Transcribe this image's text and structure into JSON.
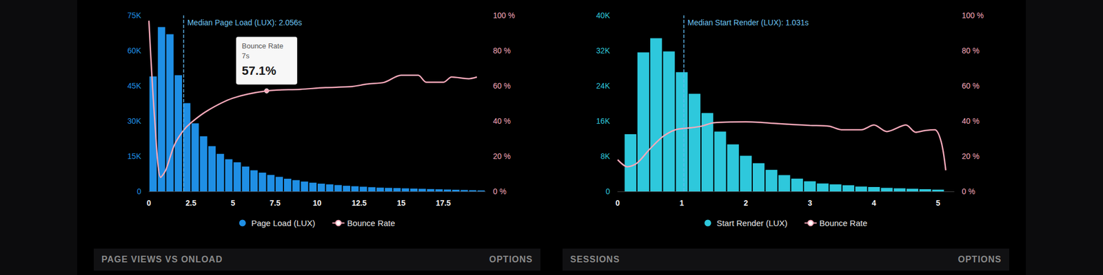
{
  "chart_data": [
    {
      "type": "bar",
      "bins": [
        0,
        0.5,
        1,
        1.5,
        2,
        2.5,
        3,
        3.5,
        4,
        4.5,
        5,
        5.5,
        6,
        6.5,
        7,
        7.5,
        8,
        8.5,
        9,
        9.5,
        10,
        10.5,
        11,
        11.5,
        12,
        12.5,
        13,
        13.5,
        14,
        14.5,
        15,
        15.5,
        16,
        16.5,
        17,
        17.5,
        18,
        18.5,
        19,
        19.5,
        20
      ],
      "series": [
        {
          "name": "Page Load (LUX)",
          "type": "bar",
          "color": "#1f8fe5",
          "values": [
            49000,
            70000,
            67000,
            49500,
            37600,
            29000,
            23500,
            19300,
            16000,
            13700,
            12400,
            10600,
            9000,
            8000,
            7000,
            6200,
            5400,
            4800,
            4200,
            3700,
            3300,
            3000,
            2700,
            2400,
            2200,
            2000,
            1800,
            1600,
            1500,
            1400,
            1300,
            1200,
            1100,
            1000,
            900,
            800,
            700,
            600,
            500,
            400
          ]
        },
        {
          "name": "Bounce Rate",
          "type": "line",
          "color": "#f7a9ba",
          "axis": "y2",
          "x": [
            0,
            0.35,
            0.7,
            1.0,
            1.5,
            2.0,
            2.5,
            3.5,
            5,
            7,
            9,
            10.5,
            12,
            13,
            14,
            15,
            16,
            16.5,
            17.5,
            18,
            19,
            19.5
          ],
          "values": [
            97,
            40,
            8,
            12,
            26,
            34,
            39,
            46,
            53,
            57.1,
            58,
            59,
            59.5,
            61,
            62,
            66,
            66,
            62,
            62,
            65,
            64,
            65
          ]
        }
      ],
      "xlim": [
        0,
        20
      ],
      "xticks": [
        0,
        2.5,
        5,
        7.5,
        10,
        12.5,
        15,
        17.5
      ],
      "ylim": [
        0,
        75000
      ],
      "yticks": [
        0,
        {
          "value": 15000,
          "label": "15K"
        },
        {
          "value": 30000,
          "label": "30K"
        },
        {
          "value": 45000,
          "label": "45K"
        },
        {
          "value": 60000,
          "label": "60K"
        },
        {
          "value": 75000,
          "label": "75K"
        }
      ],
      "y2lim": [
        0,
        100
      ],
      "y2ticks": [
        {
          "value": 0,
          "label": "0 %"
        },
        {
          "value": 20,
          "label": "20 %"
        },
        {
          "value": 40,
          "label": "40 %"
        },
        {
          "value": 60,
          "label": "60 %"
        },
        {
          "value": 80,
          "label": "80 %"
        },
        {
          "value": 100,
          "label": "100 %"
        }
      ],
      "median_line": {
        "label": "Median Page Load (LUX): 2.056s",
        "x": 2.056
      },
      "tooltip": {
        "title": "Bounce Rate",
        "subtitle": "7s",
        "label": "57.1%",
        "x": 7,
        "y": 57.1
      },
      "legend": "bottom",
      "grid": false
    },
    {
      "type": "bar",
      "bins": [
        0.1,
        0.3,
        0.5,
        0.7,
        0.9,
        1.1,
        1.3,
        1.5,
        1.7,
        1.9,
        2.1,
        2.3,
        2.5,
        2.7,
        2.9,
        3.1,
        3.3,
        3.5,
        3.7,
        3.9,
        4.1,
        4.3,
        4.5,
        4.7,
        4.9,
        5.1
      ],
      "series": [
        {
          "name": "Start Render (LUX)",
          "type": "bar",
          "color": "#2ec8dc",
          "values": [
            13000,
            31600,
            34800,
            31800,
            27100,
            22200,
            17800,
            13600,
            10700,
            8100,
            6400,
            4900,
            3700,
            2900,
            2300,
            1800,
            1600,
            1400,
            1100,
            1000,
            800,
            700,
            600,
            500,
            400
          ]
        },
        {
          "name": "Bounce Rate",
          "type": "line",
          "color": "#f7a9ba",
          "axis": "y2",
          "x": [
            0,
            0.15,
            0.3,
            0.5,
            0.7,
            0.9,
            1.1,
            1.3,
            1.5,
            2,
            2.5,
            3,
            3.3,
            3.5,
            3.8,
            4,
            4.2,
            4.5,
            4.65,
            4.8,
            4.95,
            5.05,
            5.12
          ],
          "values": [
            18,
            14,
            16,
            24,
            31,
            35,
            36,
            37,
            39,
            39.5,
            38.5,
            37.5,
            37,
            35,
            35,
            37.7,
            34,
            37.7,
            33.6,
            34.6,
            35,
            28,
            12
          ]
        }
      ],
      "xlim": [
        0,
        5.25
      ],
      "xticks": [
        0,
        1,
        2,
        3,
        4,
        5
      ],
      "ylim": [
        0,
        40000
      ],
      "yticks": [
        0,
        {
          "value": 8000,
          "label": "8K"
        },
        {
          "value": 16000,
          "label": "16K"
        },
        {
          "value": 24000,
          "label": "24K"
        },
        {
          "value": 32000,
          "label": "32K"
        },
        {
          "value": 40000,
          "label": "40K"
        }
      ],
      "y2lim": [
        0,
        100
      ],
      "y2ticks": [
        {
          "value": 0,
          "label": "0 %"
        },
        {
          "value": 20,
          "label": "20 %"
        },
        {
          "value": 40,
          "label": "40 %"
        },
        {
          "value": 60,
          "label": "60 %"
        },
        {
          "value": 80,
          "label": "80 %"
        },
        {
          "value": 100,
          "label": "100 %"
        }
      ],
      "median_line": {
        "label": "Median Start Render (LUX): 1.031s",
        "x": 1.031
      },
      "legend": "bottom",
      "grid": false
    }
  ],
  "panels_below": [
    {
      "title": "PAGE VIEWS VS ONLOAD",
      "action": "OPTIONS"
    },
    {
      "title": "SESSIONS",
      "action": "OPTIONS"
    }
  ]
}
